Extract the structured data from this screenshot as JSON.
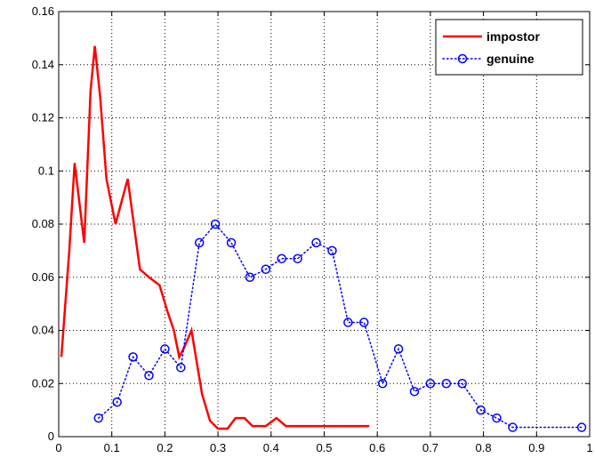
{
  "chart_data": {
    "type": "line",
    "title": "",
    "xlabel": "",
    "ylabel": "",
    "xlim": [
      0,
      1
    ],
    "ylim": [
      0,
      0.16
    ],
    "grid": true,
    "legend_position": "top-right",
    "x_ticks": [
      "0",
      "0.1",
      "0.2",
      "0.3",
      "0.4",
      "0.5",
      "0.6",
      "0.7",
      "0.8",
      "0.9",
      "1"
    ],
    "x_tick_values": [
      0,
      0.1,
      0.2,
      0.3,
      0.4,
      0.5,
      0.6,
      0.7,
      0.8,
      0.9,
      1
    ],
    "y_ticks": [
      "0",
      "0.02",
      "0.04",
      "0.06",
      "0.08",
      "0.1",
      "0.12",
      "0.14",
      "0.16"
    ],
    "y_tick_values": [
      0,
      0.02,
      0.04,
      0.06,
      0.08,
      0.1,
      0.12,
      0.14,
      0.16
    ],
    "series": [
      {
        "name": "impostor",
        "color": "#ff0000",
        "line_style": "solid",
        "marker": "none",
        "x": [
          0.005,
          0.02,
          0.03,
          0.048,
          0.06,
          0.068,
          0.078,
          0.09,
          0.107,
          0.13,
          0.153,
          0.17,
          0.19,
          0.205,
          0.217,
          0.227,
          0.235,
          0.25,
          0.27,
          0.285,
          0.3,
          0.318,
          0.333,
          0.35,
          0.365,
          0.39,
          0.41,
          0.428,
          0.45,
          0.47,
          0.5,
          0.53,
          0.56,
          0.585
        ],
        "values": [
          0.03,
          0.07,
          0.103,
          0.073,
          0.13,
          0.147,
          0.128,
          0.097,
          0.08,
          0.097,
          0.063,
          0.06,
          0.057,
          0.047,
          0.04,
          0.03,
          0.033,
          0.04,
          0.016,
          0.006,
          0.003,
          0.003,
          0.007,
          0.007,
          0.004,
          0.004,
          0.007,
          0.004,
          0.004,
          0.004,
          0.004,
          0.004,
          0.004,
          0.004
        ]
      },
      {
        "name": "genuine",
        "color": "#0000ff",
        "line_style": "dotted",
        "marker": "circle",
        "x": [
          0.075,
          0.11,
          0.14,
          0.17,
          0.2,
          0.23,
          0.265,
          0.295,
          0.325,
          0.36,
          0.39,
          0.42,
          0.45,
          0.485,
          0.515,
          0.545,
          0.575,
          0.61,
          0.64,
          0.67,
          0.7,
          0.73,
          0.76,
          0.795,
          0.825,
          0.855,
          0.985
        ],
        "values": [
          0.007,
          0.013,
          0.03,
          0.023,
          0.033,
          0.026,
          0.073,
          0.08,
          0.073,
          0.06,
          0.063,
          0.067,
          0.067,
          0.073,
          0.07,
          0.043,
          0.043,
          0.02,
          0.033,
          0.017,
          0.02,
          0.02,
          0.02,
          0.01,
          0.007,
          0.0035,
          0.0035
        ]
      }
    ]
  }
}
